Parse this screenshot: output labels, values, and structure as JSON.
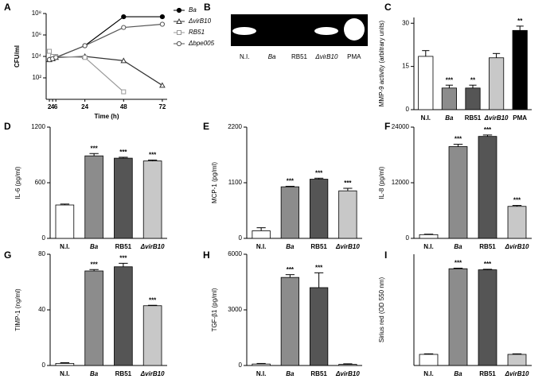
{
  "chart_data": [
    {
      "type": "line",
      "panel": "A",
      "xlabel": "Time (h)",
      "ylabel": "CFU/ml",
      "log_y": true,
      "x": [
        2,
        4,
        6,
        24,
        48,
        72
      ],
      "xlim": [
        0,
        75
      ],
      "xticks": [
        2,
        4,
        6,
        24,
        48,
        72
      ],
      "ylim": [
        1,
        100000000
      ],
      "yticks": [
        {
          "value": 100,
          "label": "10²"
        },
        {
          "value": 10000,
          "label": "10⁴"
        },
        {
          "value": 1000000,
          "label": "10⁶"
        },
        {
          "value": 100000000,
          "label": "10⁸"
        }
      ],
      "series": [
        {
          "name": "Ba",
          "color": "#000000",
          "marker": "circle",
          "filled": true,
          "values": [
            5000,
            6000,
            8000,
            100000,
            50000000,
            50000000
          ]
        },
        {
          "name": "ΔvirB10",
          "color": "#333333",
          "marker": "triangle",
          "filled": false,
          "values": [
            5000,
            6000,
            8000,
            10000,
            4000,
            20
          ]
        },
        {
          "name": "RB51",
          "color": "#999999",
          "marker": "square",
          "filled": false,
          "values": [
            30000,
            10000,
            10000,
            8000,
            5,
            null
          ]
        },
        {
          "name": "Δbpe005",
          "color": "#555555",
          "marker": "circle",
          "filled": false,
          "values": [
            5000,
            6000,
            8000,
            100000,
            5000000,
            10000000
          ]
        }
      ]
    },
    {
      "type": "gel",
      "panel": "B",
      "categories": [
        "N.I.",
        "Ba",
        "RB51",
        "ΔvirB10",
        "PMA"
      ],
      "italic": [
        false,
        true,
        false,
        true,
        false
      ]
    },
    {
      "type": "bar",
      "panel": "C",
      "ylabel": "MMP-9 activity (arbitrary units)",
      "ylim": [
        0,
        32
      ],
      "yticks": [
        0,
        15,
        30
      ],
      "categories": [
        "N.I.",
        "Ba",
        "RB51",
        "ΔvirB10",
        "PMA"
      ],
      "italic": [
        false,
        true,
        false,
        true,
        false
      ],
      "values": [
        18.5,
        7.5,
        7.5,
        18,
        27.5
      ],
      "errors": [
        2,
        1,
        1,
        1.5,
        1.5
      ],
      "colors": [
        "#ffffff",
        "#8c8c8c",
        "#555555",
        "#c8c8c8",
        "#000000"
      ],
      "annotations": [
        null,
        "***",
        "**",
        null,
        "**"
      ]
    },
    {
      "type": "bar",
      "panel": "D",
      "ylabel": "IL-6 (pg/ml)",
      "ylim": [
        0,
        1200
      ],
      "yticks": [
        0,
        600,
        1200
      ],
      "categories": [
        "N.I.",
        "Ba",
        "RB51",
        "ΔvirB10"
      ],
      "italic": [
        false,
        true,
        false,
        true
      ],
      "values": [
        360,
        890,
        865,
        835
      ],
      "errors": [
        10,
        25,
        10,
        10
      ],
      "colors": [
        "#ffffff",
        "#8c8c8c",
        "#555555",
        "#c8c8c8"
      ],
      "annotations": [
        null,
        "***",
        "***",
        "***"
      ]
    },
    {
      "type": "bar",
      "panel": "E",
      "ylabel": "MCP-1 (pg/ml)",
      "ylim": [
        0,
        2200
      ],
      "yticks": [
        0,
        1100,
        2200
      ],
      "categories": [
        "N.I.",
        "Ba",
        "RB51",
        "ΔvirB10"
      ],
      "italic": [
        false,
        true,
        false,
        true
      ],
      "values": [
        150,
        1020,
        1170,
        940
      ],
      "errors": [
        60,
        10,
        20,
        50
      ],
      "colors": [
        "#ffffff",
        "#8c8c8c",
        "#555555",
        "#c8c8c8"
      ],
      "annotations": [
        null,
        "***",
        "***",
        "***"
      ]
    },
    {
      "type": "bar",
      "panel": "F",
      "ylabel": "IL-8 (pg/ml)",
      "ylim": [
        0,
        24000
      ],
      "yticks": [
        0,
        12000,
        24000
      ],
      "categories": [
        "N.I.",
        "Ba",
        "RB51",
        "ΔvirB10"
      ],
      "italic": [
        false,
        true,
        false,
        true
      ],
      "values": [
        800,
        19800,
        22000,
        6900
      ],
      "errors": [
        100,
        500,
        300,
        200
      ],
      "colors": [
        "#ffffff",
        "#8c8c8c",
        "#555555",
        "#c8c8c8"
      ],
      "annotations": [
        null,
        "***",
        "***",
        "***"
      ]
    },
    {
      "type": "bar",
      "panel": "G",
      "ylabel": "TIMP-1 (ng/ml)",
      "ylim": [
        0,
        80
      ],
      "yticks": [
        0,
        40,
        80
      ],
      "categories": [
        "N.I.",
        "Ba",
        "RB51",
        "ΔvirB10"
      ],
      "italic": [
        false,
        true,
        false,
        true
      ],
      "values": [
        1.5,
        68,
        71,
        43
      ],
      "errors": [
        0.5,
        1,
        2.5,
        0.3
      ],
      "colors": [
        "#ffffff",
        "#8c8c8c",
        "#555555",
        "#c8c8c8"
      ],
      "annotations": [
        null,
        "***",
        "***",
        "***"
      ]
    },
    {
      "type": "bar",
      "panel": "H",
      "ylabel": "TGF-β1 (pg/ml)",
      "ylim": [
        0,
        6000
      ],
      "yticks": [
        0,
        3000,
        6000
      ],
      "categories": [
        "N.I.",
        "Ba",
        "RB51",
        "ΔvirB10"
      ],
      "italic": [
        false,
        true,
        false,
        true
      ],
      "values": [
        80,
        4750,
        4200,
        60
      ],
      "errors": [
        30,
        150,
        800,
        30
      ],
      "colors": [
        "#ffffff",
        "#8c8c8c",
        "#555555",
        "#c8c8c8"
      ],
      "annotations": [
        null,
        "***",
        "***",
        null
      ]
    },
    {
      "type": "bar",
      "panel": "I",
      "ylabel": "Sirius red (OD 550 nm)",
      "ylim": [
        0,
        1
      ],
      "categories": [
        "N.I.",
        "Ba",
        "RB51",
        "ΔvirB10"
      ],
      "italic": [
        false,
        true,
        false,
        true
      ],
      "values": [
        0.1,
        0.87,
        0.86,
        0.1
      ],
      "errors": [
        0.005,
        0.005,
        0.005,
        0.005
      ],
      "colors": [
        "#ffffff",
        "#8c8c8c",
        "#555555",
        "#c8c8c8"
      ],
      "annotations": [
        null,
        "***",
        "***",
        null
      ]
    }
  ]
}
